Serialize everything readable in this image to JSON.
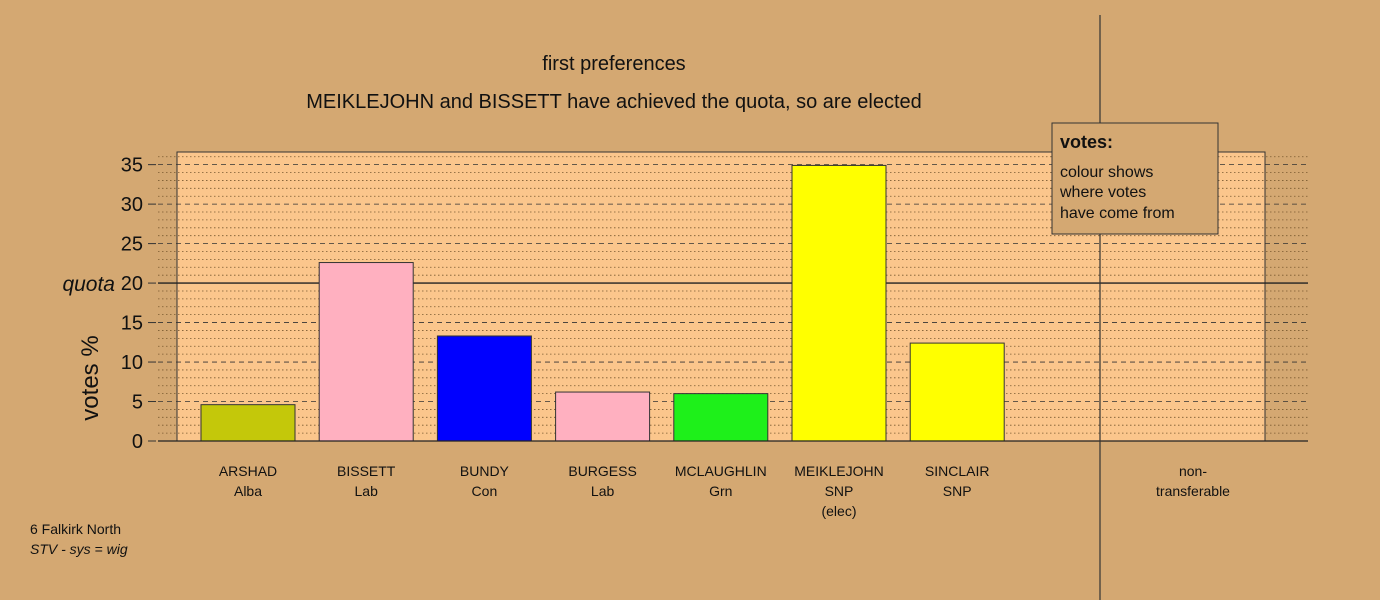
{
  "chart_data": {
    "type": "bar",
    "title": "first preferences",
    "subtitle": "MEIKLEJOHN and BISSETT have achieved the quota, so are elected",
    "y_label": "votes %",
    "categories": [
      [
        "ARSHAD",
        "Alba"
      ],
      [
        "BISSETT",
        "Lab"
      ],
      [
        "BUNDY",
        "Con"
      ],
      [
        "BURGESS",
        "Lab"
      ],
      [
        "MCLAUGHLIN",
        "Grn"
      ],
      [
        "MEIKLEJOHN",
        "SNP",
        "(elec)"
      ],
      [
        "SINCLAIR",
        "SNP"
      ],
      [
        "non-",
        "transferable"
      ]
    ],
    "values": [
      4.6,
      22.6,
      13.3,
      6.2,
      6.0,
      34.9,
      12.4,
      0
    ],
    "colors": [
      "#c4c80a",
      "#ffb0c0",
      "#0000ff",
      "#ffb0c0",
      "#1ef01a",
      "#ffff00",
      "#ffff00",
      "#ffff00"
    ],
    "ylim": [
      0,
      36.6
    ],
    "yticks": [
      0,
      5,
      10,
      15,
      20,
      25,
      30,
      35
    ],
    "minor_yticks": [
      1,
      2,
      3,
      4,
      6,
      7,
      8,
      9,
      11,
      12,
      13,
      14,
      16,
      17,
      18,
      19,
      21,
      22,
      23,
      24,
      26,
      27,
      28,
      29,
      31,
      32,
      33,
      34,
      36
    ],
    "quota": 20,
    "quota_label": "quota",
    "legend": {
      "title": "votes:",
      "lines": [
        "colour shows",
        "where votes",
        "have come from"
      ]
    },
    "footer": [
      "6 Falkirk North",
      "STV - sys = wig"
    ]
  }
}
